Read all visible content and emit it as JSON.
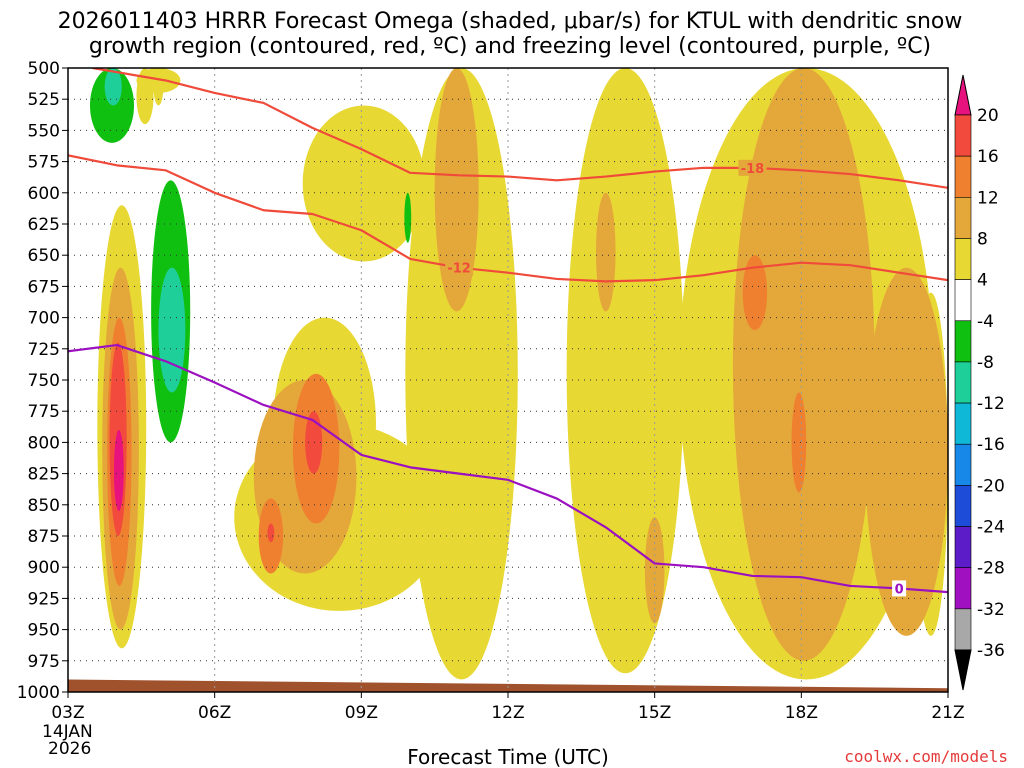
{
  "chart_data": {
    "type": "heatmap",
    "title_line1": "2026011403 HRRR Forecast Omega (shaded, μbar/s) for KTUL with dendritic snow",
    "title_line2": "growth region (contoured, red, ºC) and freezing level (contoured, purple, ºC)",
    "xlabel": "Forecast Time (UTC)",
    "credit": "coolwx.com/models",
    "date_label_1": "14JAN",
    "date_label_2": "2026",
    "x_hours": [
      3,
      6,
      9,
      12,
      15,
      18,
      21
    ],
    "x_tick_labels": [
      "03Z",
      "06Z",
      "09Z",
      "12Z",
      "15Z",
      "18Z",
      "21Z"
    ],
    "xlim": [
      3,
      21
    ],
    "y_ticks": [
      500,
      525,
      550,
      575,
      600,
      625,
      650,
      675,
      700,
      725,
      750,
      775,
      800,
      825,
      850,
      875,
      900,
      925,
      950,
      975,
      1000
    ],
    "ylim": [
      500,
      1000
    ],
    "colorbar": {
      "labels": [
        "20",
        "16",
        "12",
        "8",
        "4",
        "-4",
        "-8",
        "-12",
        "-16",
        "-20",
        "-24",
        "-28",
        "-32",
        "-36"
      ],
      "levels": [
        20,
        16,
        12,
        8,
        4,
        -4,
        -8,
        -12,
        -16,
        -20,
        -24,
        -28,
        -32,
        -36
      ],
      "colors": [
        "#e8127e",
        "#f24a3c",
        "#ef8030",
        "#e4a83a",
        "#e8d834",
        "#ffffff",
        "#10c010",
        "#1ecf9a",
        "#10b8d8",
        "#1888e8",
        "#1c4cd8",
        "#5c1cc8",
        "#a010c0",
        "#a8a8a8",
        "#000000"
      ]
    },
    "omega_fields": [
      {
        "level": 4,
        "color": "#e8d834",
        "shapes": [
          {
            "x0": 3.6,
            "x1": 4.6,
            "top": 610,
            "bottom": 965
          },
          {
            "x0": 6.4,
            "x1": 10.7,
            "top": 785,
            "bottom": 935
          },
          {
            "x0": 7.2,
            "x1": 9.3,
            "top": 700,
            "bottom": 870
          },
          {
            "x0": 4.4,
            "x1": 5.3,
            "top": 500,
            "bottom": 520
          },
          {
            "x0": 4.4,
            "x1": 4.75,
            "top": 500,
            "bottom": 545
          },
          {
            "x0": 4.75,
            "x1": 4.95,
            "top": 500,
            "bottom": 530
          },
          {
            "x0": 7.8,
            "x1": 10.3,
            "top": 530,
            "bottom": 655
          },
          {
            "x0": 9.9,
            "x1": 12.2,
            "top": 500,
            "bottom": 990
          },
          {
            "x0": 13.2,
            "x1": 15.6,
            "top": 500,
            "bottom": 985
          },
          {
            "x0": 15.5,
            "x1": 20.7,
            "top": 500,
            "bottom": 990
          },
          {
            "x0": 20.3,
            "x1": 21,
            "top": 680,
            "bottom": 955
          }
        ]
      },
      {
        "level": 8,
        "color": "#e4a83a",
        "shapes": [
          {
            "x0": 3.7,
            "x1": 4.45,
            "top": 660,
            "bottom": 950
          },
          {
            "x0": 6.8,
            "x1": 8.9,
            "top": 750,
            "bottom": 905
          },
          {
            "x0": 10.5,
            "x1": 11.4,
            "top": 500,
            "bottom": 695
          },
          {
            "x0": 13.8,
            "x1": 14.2,
            "top": 600,
            "bottom": 695
          },
          {
            "x0": 14.8,
            "x1": 15.2,
            "top": 860,
            "bottom": 945
          },
          {
            "x0": 16.6,
            "x1": 19.5,
            "top": 500,
            "bottom": 975
          },
          {
            "x0": 19.3,
            "x1": 21,
            "top": 660,
            "bottom": 955
          }
        ]
      },
      {
        "level": 12,
        "color": "#ef8030",
        "shapes": [
          {
            "x0": 3.8,
            "x1": 4.3,
            "top": 700,
            "bottom": 915
          },
          {
            "x0": 6.9,
            "x1": 7.4,
            "top": 845,
            "bottom": 905
          },
          {
            "x0": 7.6,
            "x1": 8.55,
            "top": 745,
            "bottom": 865
          },
          {
            "x0": 16.8,
            "x1": 17.3,
            "top": 650,
            "bottom": 710
          },
          {
            "x0": 17.8,
            "x1": 18.1,
            "top": 760,
            "bottom": 840
          }
        ]
      },
      {
        "level": 16,
        "color": "#f24a3c",
        "shapes": [
          {
            "x0": 3.85,
            "x1": 4.2,
            "top": 720,
            "bottom": 875
          },
          {
            "x0": 7.85,
            "x1": 8.2,
            "top": 775,
            "bottom": 825
          },
          {
            "x0": 7.08,
            "x1": 7.22,
            "top": 865,
            "bottom": 880
          }
        ]
      },
      {
        "level": 20,
        "color": "#e8127e",
        "shapes": [
          {
            "x0": 3.94,
            "x1": 4.14,
            "top": 790,
            "bottom": 855
          }
        ]
      },
      {
        "level": -4,
        "color": "#10c010",
        "shapes": [
          {
            "x0": 3.45,
            "x1": 4.35,
            "top": 500,
            "bottom": 560
          },
          {
            "x0": 4.7,
            "x1": 5.5,
            "top": 590,
            "bottom": 800
          },
          {
            "x0": 9.88,
            "x1": 10.02,
            "top": 600,
            "bottom": 640
          }
        ]
      },
      {
        "level": -8,
        "color": "#1ecf9a",
        "shapes": [
          {
            "x0": 3.75,
            "x1": 4.1,
            "top": 500,
            "bottom": 530
          },
          {
            "x0": 4.85,
            "x1": 5.4,
            "top": 660,
            "bottom": 760
          }
        ]
      }
    ],
    "snow_growth_contours": [
      {
        "label": "-12",
        "color": "#ef4a3a",
        "x": [
          3,
          4,
          5,
          6,
          7,
          8,
          9,
          10,
          11,
          12,
          13,
          14,
          15,
          16,
          17,
          18,
          19,
          20,
          21
        ],
        "y": [
          570,
          578,
          582,
          600,
          614,
          617,
          630,
          653,
          660,
          664,
          669,
          671,
          670,
          666,
          660,
          656,
          658,
          664,
          670
        ]
      },
      {
        "label": "-18",
        "color": "#ef4a3a",
        "x": [
          3.5,
          5,
          6,
          7,
          8,
          9,
          10,
          11,
          12,
          13,
          14,
          15,
          16,
          17,
          18,
          19,
          20,
          21
        ],
        "y": [
          500,
          510,
          520,
          528,
          548,
          565,
          584,
          586,
          587,
          590,
          587,
          583,
          580,
          580,
          582,
          585,
          590,
          596
        ]
      }
    ],
    "freezing_level": {
      "label": "0",
      "color": "#9b10c0",
      "x": [
        3,
        4,
        5,
        6,
        7,
        8,
        9,
        10,
        11,
        12,
        13,
        14,
        15,
        16,
        17,
        18,
        19,
        20,
        21
      ],
      "y": [
        727,
        722,
        735,
        752,
        770,
        782,
        810,
        820,
        825,
        830,
        845,
        868,
        897,
        900,
        907,
        908,
        915,
        917,
        920
      ]
    },
    "ground": {
      "color": "#a0522d",
      "top_left": 990,
      "top_right": 997
    }
  }
}
